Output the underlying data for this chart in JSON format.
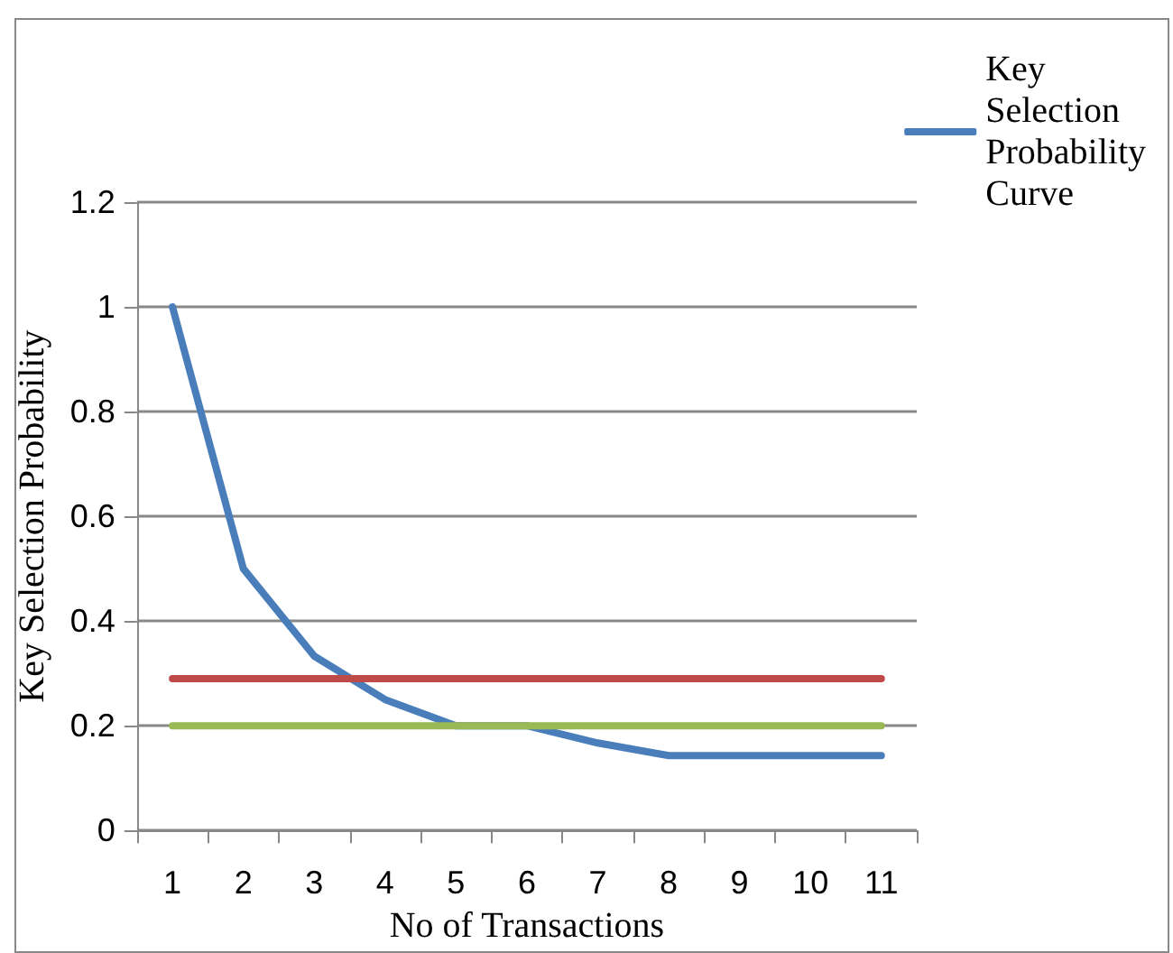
{
  "chart_data": {
    "type": "line",
    "xlabel": "No of Transactions",
    "ylabel": "Key Selection Probability",
    "categories": [
      "1",
      "2",
      "3",
      "4",
      "5",
      "6",
      "7",
      "8",
      "9",
      "10",
      "11"
    ],
    "series": [
      {
        "name": "Key Selection Probability Curve",
        "color": "#4a7ebb",
        "values": [
          1,
          0.5,
          0.333,
          0.25,
          0.2,
          0.2,
          0.167,
          0.143,
          0.143,
          0.143,
          0.143
        ]
      },
      {
        "color": "#be4b48",
        "values": [
          0.29,
          0.29,
          0.29,
          0.29,
          0.29,
          0.29,
          0.29,
          0.29,
          0.29,
          0.29,
          0.29
        ]
      },
      {
        "color": "#98b954",
        "values": [
          0.2,
          0.2,
          0.2,
          0.2,
          0.2,
          0.2,
          0.2,
          0.2,
          0.2,
          0.2,
          0.2
        ]
      }
    ],
    "ylim": [
      0,
      1.2
    ],
    "yticks": [
      0,
      0.2,
      0.4,
      0.6,
      0.8,
      1,
      1.2
    ],
    "grid": "y",
    "legend": "top right",
    "marker": "none",
    "line_style": "solid"
  }
}
